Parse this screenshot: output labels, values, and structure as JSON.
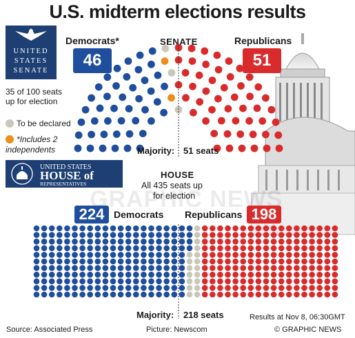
{
  "title": "U.S. midterm elections results",
  "senate": {
    "logo_lines": [
      "UNITED",
      "STATES",
      "SENATE"
    ],
    "seats_up_line1": "35 of 100 seats",
    "seats_up_line2": "up for election",
    "chamber_label": "SENATE",
    "dem_label": "Democrats*",
    "rep_label": "Republicans",
    "dem_count": 46,
    "rep_count": 51,
    "independents": 2,
    "to_be_declared": 3,
    "majority_label": "Majority:",
    "majority_value": "51 seats"
  },
  "legend": {
    "to_be_declared": "To be declared",
    "independents_line1": "*Includes 2",
    "independents_line2": "independents"
  },
  "house": {
    "logo_line1": "UNITED STATES",
    "logo_line2": "HOUSE of",
    "logo_line3": "REPRESENTATIVES",
    "chamber_label": "HOUSE",
    "seats_up_line1": "All 435 seats up",
    "seats_up_line2": "for election",
    "dem_label": "Democrats",
    "rep_label": "Republicans",
    "dem_count": 224,
    "rep_count": 198,
    "to_be_declared": 13,
    "majority_label": "Majority:",
    "majority_value": "218 seats"
  },
  "footer": {
    "source": "Source: Associated Press",
    "picture": "Picture: Newscom",
    "results_time": "Results at Nov 8, 06:30GMT",
    "copyright": "© GRAPHIC NEWS"
  },
  "watermark": "GRAPHIC NEWS",
  "colors": {
    "dem": "#1f4e9c",
    "rep": "#d92b2b",
    "rep_light": "#e86b6b",
    "undeclared": "#c9c8b8",
    "independent": "#ef8d1a",
    "navy": "#1d3f73"
  }
}
